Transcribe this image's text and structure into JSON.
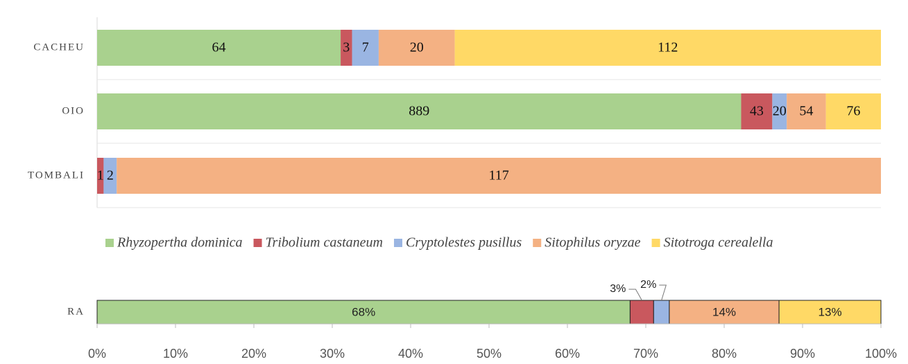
{
  "chart_data": [
    {
      "type": "bar",
      "orientation": "horizontal",
      "stacked": true,
      "normalize": true,
      "legend": "bottom",
      "categories": [
        "CACHEU",
        "OIO",
        "TOMBALI"
      ],
      "series": [
        {
          "name": "Rhyzopertha dominica",
          "color": "#a9d18e",
          "values": [
            64,
            889,
            null
          ]
        },
        {
          "name": "Tribolium castaneum",
          "color": "#c9585e",
          "values": [
            3,
            43,
            1
          ]
        },
        {
          "name": "Cryptolestes pusillus",
          "color": "#9ab5e2",
          "values": [
            7,
            20,
            2
          ]
        },
        {
          "name": "Sitophilus oryzae",
          "color": "#f4b183",
          "values": [
            20,
            54,
            117
          ]
        },
        {
          "name": "Sitotroga cerealella",
          "color": "#ffd966",
          "values": [
            112,
            76,
            null
          ]
        }
      ]
    },
    {
      "type": "bar",
      "orientation": "horizontal",
      "stacked": true,
      "categories": [
        "RA"
      ],
      "series": [
        {
          "color": "#a9d18e",
          "values": [
            68
          ],
          "value_labels": [
            "68%"
          ]
        },
        {
          "color": "#c9585e",
          "values": [
            3
          ],
          "value_labels": [
            "3%"
          ]
        },
        {
          "color": "#9ab5e2",
          "values": [
            2
          ],
          "value_labels": [
            "2%"
          ]
        },
        {
          "color": "#f4b183",
          "values": [
            14
          ],
          "value_labels": [
            "14%"
          ]
        },
        {
          "color": "#ffd966",
          "values": [
            13
          ],
          "value_labels": [
            "13%"
          ]
        }
      ],
      "xlim": [
        0,
        100
      ],
      "xticks": [
        {
          "value": 0,
          "label": "0%"
        },
        {
          "value": 10,
          "label": "10%"
        },
        {
          "value": 20,
          "label": "20%"
        },
        {
          "value": 30,
          "label": "30%"
        },
        {
          "value": 40,
          "label": "40%"
        },
        {
          "value": 50,
          "label": "50%"
        },
        {
          "value": 60,
          "label": "60%"
        },
        {
          "value": 70,
          "label": "70%"
        },
        {
          "value": 80,
          "label": "80%"
        },
        {
          "value": 90,
          "label": "90%"
        },
        {
          "value": 100,
          "label": "100%"
        }
      ]
    }
  ]
}
